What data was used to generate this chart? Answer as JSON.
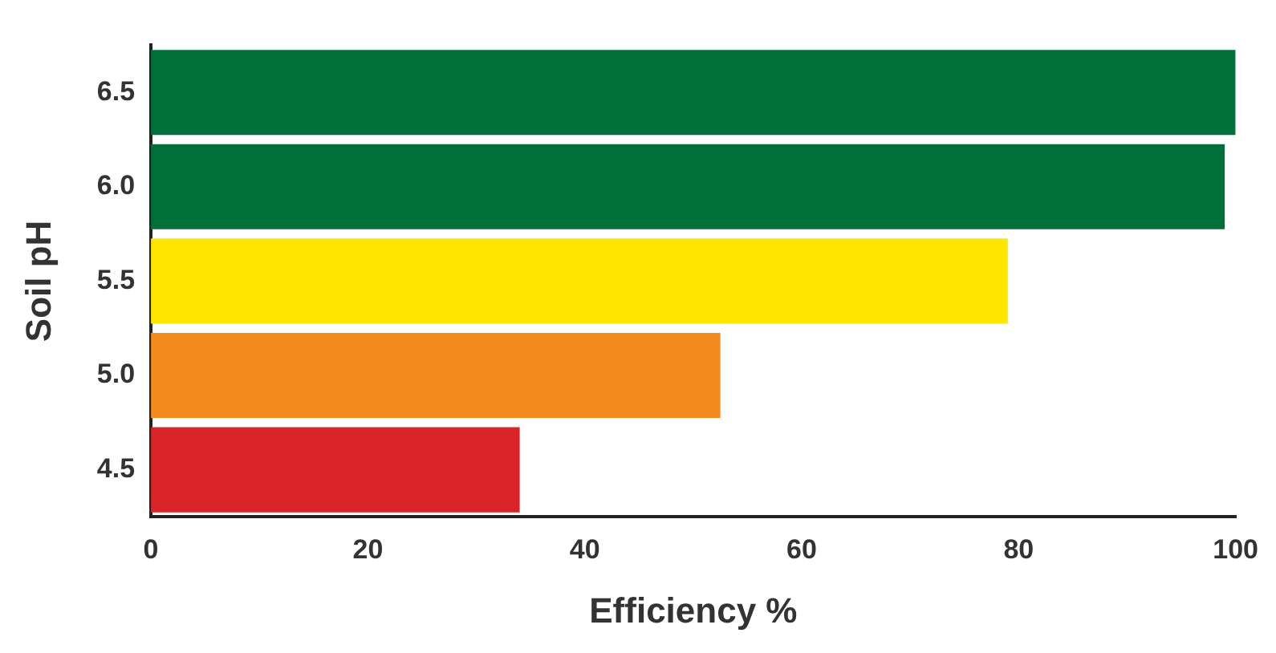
{
  "chart_data": {
    "type": "bar",
    "orientation": "horizontal",
    "xlabel": "Efficiency %",
    "ylabel": "Soil pH",
    "categories": [
      "6.5",
      "6.0",
      "5.5",
      "5.0",
      "4.5"
    ],
    "values": [
      100,
      99,
      79,
      52.5,
      34
    ],
    "colors": [
      "#006f3a",
      "#006f3a",
      "#ffe600",
      "#f58a1f",
      "#d9252a"
    ],
    "xlim": [
      0,
      100
    ],
    "xticks": [
      0,
      20,
      40,
      60,
      80,
      100
    ],
    "grid": false,
    "legend": false
  }
}
